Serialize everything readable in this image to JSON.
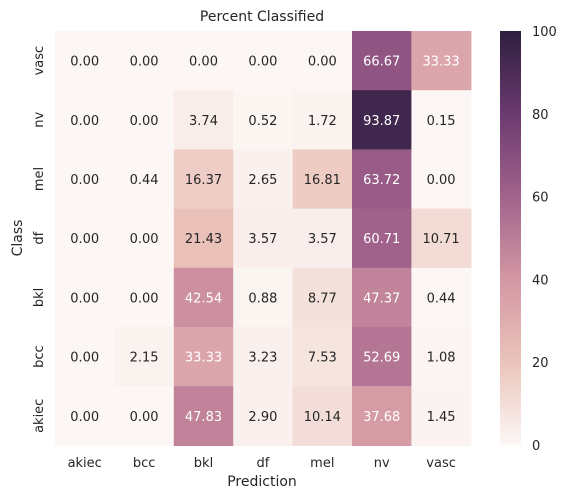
{
  "chart_data": {
    "type": "heatmap",
    "title": "Percent Classified",
    "xlabel": "Prediction",
    "ylabel": "Class",
    "x_categories": [
      "akiec",
      "bcc",
      "bkl",
      "df",
      "mel",
      "nv",
      "vasc"
    ],
    "y_categories": [
      "vasc",
      "nv",
      "mel",
      "df",
      "bkl",
      "bcc",
      "akiec"
    ],
    "values": [
      [
        "0.00",
        "0.00",
        "0.00",
        "0.00",
        "0.00",
        "66.67",
        "33.33"
      ],
      [
        "0.00",
        "0.00",
        "3.74",
        "0.52",
        "1.72",
        "93.87",
        "0.15"
      ],
      [
        "0.00",
        "0.44",
        "16.37",
        "2.65",
        "16.81",
        "63.72",
        "0.00"
      ],
      [
        "0.00",
        "0.00",
        "21.43",
        "3.57",
        "3.57",
        "60.71",
        "10.71"
      ],
      [
        "0.00",
        "0.00",
        "42.54",
        "0.88",
        "8.77",
        "47.37",
        "0.44"
      ],
      [
        "0.00",
        "2.15",
        "33.33",
        "3.23",
        "7.53",
        "52.69",
        "1.08"
      ],
      [
        "0.00",
        "0.00",
        "47.83",
        "2.90",
        "10.14",
        "37.68",
        "1.45"
      ]
    ],
    "colorbar": {
      "range": [
        0,
        100
      ],
      "ticks": [
        "0",
        "20",
        "40",
        "60",
        "80",
        "100"
      ],
      "stops": [
        "#fcf7f5",
        "#ebc4bb",
        "#d397a3",
        "#a2638c",
        "#6b3a70",
        "#2d1e3e"
      ]
    }
  }
}
